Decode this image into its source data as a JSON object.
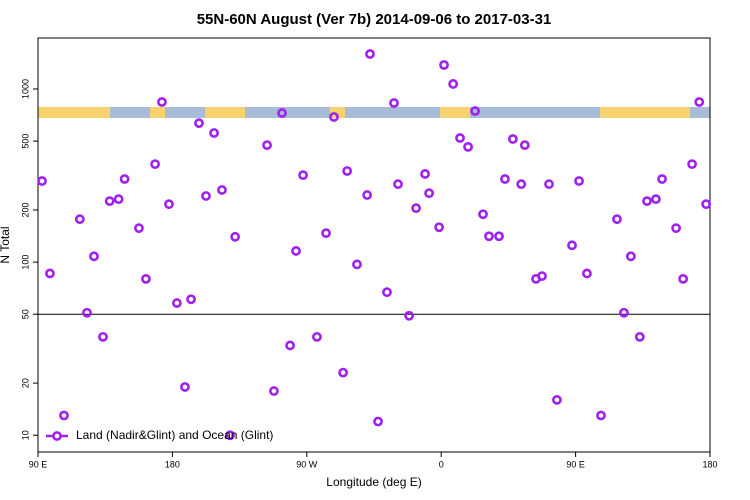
{
  "chart_data": {
    "type": "scatter",
    "title": "55N-60N August (Ver 7b)   2014-09-06 to 2017-03-31",
    "xlabel": "Longitude (deg E)",
    "ylabel": "N Total",
    "legend": "bottom-left",
    "color": "#a020f0",
    "log_y": true,
    "reference_line": 50,
    "xlim": [
      90,
      540
    ],
    "xticks": [
      {
        "value": 90,
        "label": "90 E"
      },
      {
        "value": 180,
        "label": "180"
      },
      {
        "value": 270,
        "label": "90 W"
      },
      {
        "value": 360,
        "label": "0"
      },
      {
        "value": 450,
        "label": "90 E"
      },
      {
        "value": 540,
        "label": "180"
      }
    ],
    "ylim": [
      8,
      1970
    ],
    "yticks": [
      10,
      20,
      50,
      100,
      200,
      500,
      1000
    ],
    "series": [
      {
        "name": "Land (Nadir&Glint) and Ocean (Glint)",
        "color": "#a020f0",
        "x": [
          92.7,
          98,
          107.4,
          118,
          122.8,
          127.5,
          133.5,
          138,
          144,
          148,
          157.6,
          162.3,
          168.4,
          173,
          177.7,
          183,
          188.4,
          192.5,
          197.8,
          202.5,
          207.9,
          213.2,
          218.6,
          222,
          243.4,
          248,
          253.4,
          258.8,
          262.8,
          267.5,
          276.8,
          282.9,
          288.2,
          294.3,
          297,
          303.6,
          310.4,
          312.3,
          317.7,
          323.7,
          328.4,
          331.1,
          338.5,
          343.2,
          349.2,
          351.9,
          358.6,
          361.9,
          368,
          372.6,
          378,
          382.7,
          388,
          392,
          398.7,
          402.7,
          408,
          413.6,
          416,
          423.5,
          427.5,
          432.2,
          437.5,
          447.6,
          452.3,
          457.6,
          467,
          477.7,
          482.4,
          487,
          493,
          497.8,
          503.8,
          507.9,
          517.3,
          522,
          528,
          532.8,
          537.4
        ],
        "values": [
          294,
          86,
          13,
          177,
          51,
          108,
          37,
          225,
          231,
          302,
          157,
          80,
          368,
          841,
          216,
          58,
          19,
          61,
          635,
          241,
          557,
          261,
          10,
          140,
          474,
          18,
          726,
          33,
          116,
          318,
          37,
          147,
          689,
          23,
          336,
          97,
          244,
          1592,
          12,
          67,
          830,
          282,
          49,
          205,
          323,
          250,
          159,
          1376,
          1069,
          521,
          463,
          746,
          189,
          141,
          141,
          302,
          514,
          282,
          474,
          80,
          83,
          282,
          16,
          125,
          294,
          86,
          13,
          177,
          51,
          108,
          37,
          225,
          231,
          302,
          157,
          80,
          368,
          841,
          216
        ]
      }
    ]
  }
}
